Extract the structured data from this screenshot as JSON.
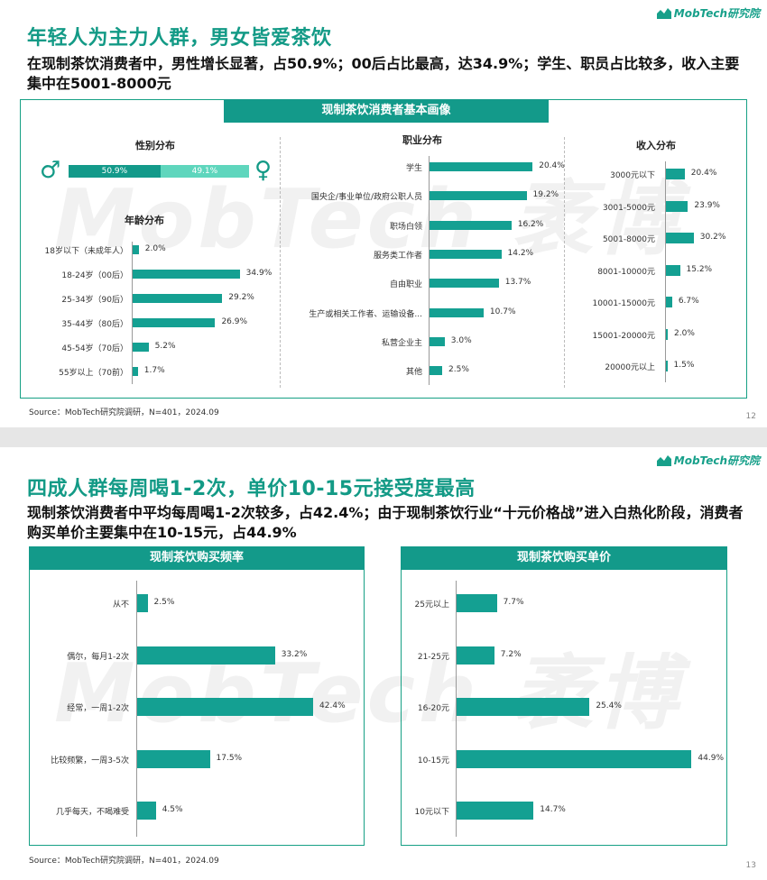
{
  "brand": {
    "name": "MobTech研究院",
    "color": "#139a86"
  },
  "watermark": "MobTech 袤博",
  "slide1": {
    "title": "年轻人为主力人群，男女皆爱茶饮",
    "subtitle": "在现制茶饮消费者中，男性增长显著，占50.9%；00后占比最高，达34.9%；学生、职员占比较多，收入主要集中在5001-8000元",
    "panel_title": "现制茶饮消费者基本画像",
    "gender_title": "性别分布",
    "gender": {
      "male_label": "50.9%",
      "female_label": "49.1%",
      "male_value": 50.9,
      "female_value": 49.1,
      "male_icon": "male-symbol-icon",
      "female_icon": "female-symbol-icon"
    },
    "age_title": "年龄分布",
    "occupation_title": "职业分布",
    "income_title": "收入分布",
    "source": "Source：MobTech研究院调研，N=401，2024.09",
    "page": "12"
  },
  "slide2": {
    "title": "四成人群每周喝1-2次，单价10-15元接受度最高",
    "subtitle": "现制茶饮消费者中平均每周喝1-2次较多，占42.4%；由于现制茶饮行业“十元价格战”进入白热化阶段，消费者购买单价主要集中在10-15元，占44.9%",
    "freq_title": "现制茶饮购买频率",
    "price_title": "现制茶饮购买单价",
    "source": "Source：MobTech研究院调研，N=401，2024.09",
    "page": "13"
  },
  "chart_data": [
    {
      "id": "age",
      "type": "bar",
      "orientation": "horizontal",
      "title": "年龄分布",
      "categories": [
        "18岁以下（未成年人）",
        "18-24岁（00后）",
        "25-34岁（90后）",
        "35-44岁（80后）",
        "45-54岁（70后）",
        "55岁以上（70前）"
      ],
      "values": [
        2.0,
        34.9,
        29.2,
        26.9,
        5.2,
        1.7
      ],
      "labels": [
        "2.0%",
        "34.9%",
        "29.2%",
        "26.9%",
        "5.2%",
        "1.7%"
      ]
    },
    {
      "id": "occupation",
      "type": "bar",
      "orientation": "horizontal",
      "title": "职业分布",
      "categories": [
        "学生",
        "国央企/事业单位/政府公职人员",
        "职场白领",
        "服务类工作者",
        "自由职业",
        "生产或相关工作者、运输设备...",
        "私营企业主",
        "其他"
      ],
      "values": [
        20.4,
        19.2,
        16.2,
        14.2,
        13.7,
        10.7,
        3.0,
        2.5
      ],
      "labels": [
        "20.4%",
        "19.2%",
        "16.2%",
        "14.2%",
        "13.7%",
        "10.7%",
        "3.0%",
        "2.5%"
      ]
    },
    {
      "id": "income",
      "type": "bar",
      "orientation": "horizontal",
      "title": "收入分布",
      "categories": [
        "3000元以下",
        "3001-5000元",
        "5001-8000元",
        "8001-10000元",
        "10001-15000元",
        "15001-20000元",
        "20000元以上"
      ],
      "values": [
        20.4,
        23.9,
        30.2,
        15.2,
        6.7,
        2.0,
        1.5
      ],
      "labels": [
        "20.4%",
        "23.9%",
        "30.2%",
        "15.2%",
        "6.7%",
        "2.0%",
        "1.5%"
      ]
    },
    {
      "id": "freq",
      "type": "bar",
      "orientation": "horizontal",
      "title": "现制茶饮购买频率",
      "categories": [
        "从不",
        "偶尔，每月1-2次",
        "经常，一周1-2次",
        "比较频繁，一周3-5次",
        "几乎每天，不喝难受"
      ],
      "values": [
        2.5,
        33.2,
        42.4,
        17.5,
        4.5
      ],
      "labels": [
        "2.5%",
        "33.2%",
        "42.4%",
        "17.5%",
        "4.5%"
      ]
    },
    {
      "id": "price",
      "type": "bar",
      "orientation": "horizontal",
      "title": "现制茶饮购买单价",
      "categories": [
        "25元以上",
        "21-25元",
        "16-20元",
        "10-15元",
        "10元以下"
      ],
      "values": [
        7.7,
        7.2,
        25.4,
        44.9,
        14.7
      ],
      "labels": [
        "7.7%",
        "7.2%",
        "25.4%",
        "44.9%",
        "14.7%"
      ]
    }
  ]
}
